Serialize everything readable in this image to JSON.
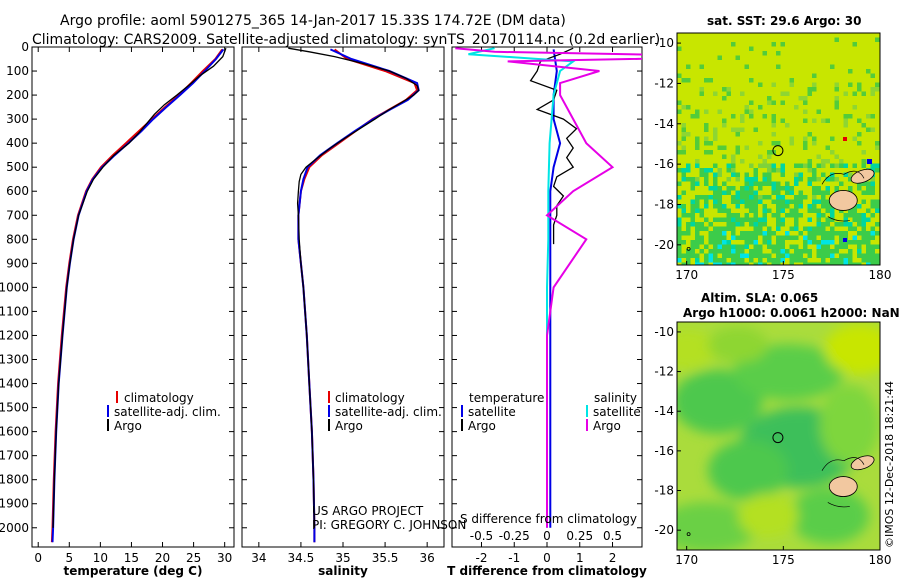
{
  "title_line1": "Argo profile: aoml 5901275_365 14-Jan-2017 15.33S 174.72E (DM data)",
  "title_line2": "Climatology: CARS2009. Satellite-adjusted climatology: synTS_20170114.nc (0.2d earlier)",
  "credit_line1": "US ARGO PROJECT",
  "credit_line2": "PI: GREGORY C. JOHNSON",
  "timestamp": "©IMOS 12-Dec-2018 18:21:44",
  "colors": {
    "climatology": "#e60000",
    "satellite": "#0000e6",
    "argo": "#000000",
    "sat_salinity": "#00e5e5",
    "argo_salinity": "#e600e6"
  },
  "chart_data": [
    {
      "type": "line",
      "id": "temperature",
      "xlabel": "temperature (deg C)",
      "ylabel": "",
      "xlim": [
        -1,
        31.5
      ],
      "ylim": [
        2080,
        0
      ],
      "xticks": [
        0,
        5,
        10,
        15,
        20,
        25,
        30
      ],
      "xtick_labels": [
        "0",
        "5",
        "10",
        "15",
        "20",
        "25",
        "30"
      ],
      "yticks": [
        0,
        100,
        200,
        300,
        400,
        500,
        600,
        700,
        800,
        900,
        1000,
        1100,
        1200,
        1300,
        1400,
        1500,
        1600,
        1700,
        1800,
        1900,
        2000
      ],
      "ytick_labels": [
        "0",
        "100",
        "200",
        "300",
        "400",
        "500",
        "600",
        "700",
        "800",
        "900",
        "1000",
        "1100",
        "1200",
        "1300",
        "1400",
        "1500",
        "1600",
        "1700",
        "1800",
        "1900",
        "2000"
      ],
      "legend": [
        "climatology",
        "satellite-adj. clim.",
        "Argo"
      ],
      "series": [
        {
          "name": "climatology",
          "color": "#e60000",
          "depth": [
            10,
            50,
            100,
            150,
            200,
            250,
            300,
            350,
            400,
            450,
            500,
            550,
            600,
            700,
            800,
            900,
            1000,
            1200,
            1400,
            1600,
            1800,
            2000,
            2060
          ],
          "values": [
            29.6,
            28.5,
            26.5,
            24.6,
            22.6,
            20.4,
            18.3,
            16.2,
            14.1,
            12.0,
            10.1,
            8.7,
            7.7,
            6.4,
            5.6,
            5.0,
            4.5,
            3.8,
            3.2,
            2.8,
            2.5,
            2.3,
            2.2
          ]
        },
        {
          "name": "satellite-adj. clim.",
          "color": "#0000e6",
          "depth": [
            10,
            50,
            100,
            150,
            200,
            250,
            300,
            350,
            400,
            450,
            500,
            550,
            600,
            700,
            800,
            900,
            1000,
            1200,
            1400,
            1600,
            1800,
            2000,
            2060
          ],
          "values": [
            29.8,
            28.6,
            26.8,
            24.9,
            22.8,
            20.6,
            18.5,
            16.6,
            14.5,
            12.3,
            10.3,
            8.8,
            7.8,
            6.5,
            5.7,
            5.1,
            4.6,
            3.9,
            3.3,
            2.9,
            2.6,
            2.4,
            2.3
          ]
        },
        {
          "name": "Argo",
          "color": "#000000",
          "depth": [
            5,
            40,
            80,
            120,
            160,
            200,
            240,
            280,
            320,
            360,
            400,
            450,
            500,
            550,
            600,
            700,
            800,
            900,
            1000,
            1200,
            1400,
            1600,
            1800,
            2000
          ],
          "values": [
            30.2,
            29.7,
            28.2,
            26.0,
            24.2,
            22.3,
            20.3,
            18.7,
            17.4,
            16.1,
            14.6,
            12.2,
            10.4,
            8.9,
            7.9,
            6.5,
            5.7,
            5.1,
            4.6,
            3.9,
            3.3,
            2.9,
            2.6,
            2.4
          ]
        }
      ]
    },
    {
      "type": "line",
      "id": "salinity",
      "xlabel": "salinity",
      "xlim": [
        33.8,
        36.2
      ],
      "ylim": [
        2080,
        0
      ],
      "xticks": [
        34,
        34.5,
        35,
        35.5,
        36
      ],
      "xtick_labels": [
        "34",
        "34.5",
        "35",
        "35.5",
        "36"
      ],
      "legend": [
        "climatology",
        "satellite-adj. clim.",
        "Argo"
      ],
      "series": [
        {
          "name": "climatology",
          "color": "#e60000",
          "depth": [
            10,
            50,
            100,
            150,
            180,
            220,
            260,
            300,
            350,
            400,
            450,
            500,
            550,
            600,
            700,
            800,
            900,
            1000,
            1200,
            1400,
            1600,
            1800,
            2000,
            2060
          ],
          "values": [
            34.9,
            35.05,
            35.5,
            35.85,
            35.88,
            35.75,
            35.55,
            35.35,
            35.15,
            34.95,
            34.75,
            34.6,
            34.54,
            34.5,
            34.47,
            34.47,
            34.5,
            34.53,
            34.57,
            34.6,
            34.63,
            34.65,
            34.66,
            34.66
          ]
        },
        {
          "name": "satellite-adj. clim.",
          "color": "#0000e6",
          "depth": [
            10,
            50,
            100,
            150,
            180,
            220,
            260,
            300,
            350,
            400,
            450,
            500,
            550,
            600,
            700,
            800,
            900,
            1000,
            1200,
            1400,
            1600,
            1800,
            2000,
            2060
          ],
          "values": [
            34.85,
            35.1,
            35.55,
            35.88,
            35.9,
            35.77,
            35.56,
            35.36,
            35.14,
            34.93,
            34.73,
            34.58,
            34.53,
            34.5,
            34.47,
            34.47,
            34.5,
            34.53,
            34.57,
            34.6,
            34.63,
            34.65,
            34.66,
            34.66
          ]
        },
        {
          "name": "Argo",
          "color": "#000000",
          "depth": [
            5,
            20,
            40,
            70,
            100,
            130,
            160,
            180,
            200,
            230,
            260,
            300,
            340,
            380,
            420,
            460,
            500,
            530,
            560,
            600,
            650,
            700,
            800,
            900,
            1000,
            1200,
            1400,
            1600,
            1800,
            2000
          ],
          "values": [
            34.35,
            34.6,
            34.9,
            35.25,
            35.55,
            35.75,
            35.88,
            35.9,
            35.84,
            35.7,
            35.55,
            35.38,
            35.2,
            35.02,
            34.85,
            34.7,
            34.56,
            34.5,
            34.48,
            34.47,
            34.46,
            34.47,
            34.48,
            34.5,
            34.53,
            34.57,
            34.6,
            34.63,
            34.65,
            34.66
          ]
        }
      ]
    },
    {
      "type": "line",
      "id": "difference",
      "xlabel": "T difference from climatology",
      "secondary_xlabel": "S difference from climatology",
      "xlim": [
        -2.9,
        2.9
      ],
      "ylim": [
        2080,
        0
      ],
      "xticks": [
        -2,
        -1,
        0,
        1,
        2
      ],
      "xtick_labels": [
        "-2",
        "-1",
        "0",
        "1",
        "2"
      ],
      "secondary_xticks": [
        -0.5,
        -0.25,
        0,
        0.25,
        0.5
      ],
      "secondary_xtick_labels": [
        "-0.5",
        "-0.25",
        "0",
        "0.25",
        "0.5"
      ],
      "legend_temperature_title": "temperature",
      "legend_salinity_title": "salinity",
      "legend": [
        "satellite",
        "Argo",
        "satellite",
        "Argo"
      ],
      "series": [
        {
          "name": "T satellite",
          "color": "#0000e6",
          "depth": [
            10,
            100,
            200,
            300,
            400,
            500,
            600,
            800,
            1000,
            1500,
            2000
          ],
          "values": [
            0.2,
            0.3,
            0.2,
            0.2,
            0.4,
            0.2,
            0.1,
            0.1,
            0.1,
            0.1,
            0.1
          ]
        },
        {
          "name": "T Argo",
          "color": "#000000",
          "depth": [
            5,
            30,
            60,
            100,
            140,
            180,
            220,
            260,
            300,
            340,
            380,
            420,
            460,
            500,
            540,
            580,
            620,
            660,
            700,
            740,
            780,
            820
          ],
          "values": [
            0.8,
            0.4,
            -0.2,
            -0.3,
            -0.5,
            0.3,
            0.2,
            -0.3,
            0.5,
            0.9,
            0.6,
            0.8,
            0.6,
            0.8,
            0.3,
            0.2,
            0.5,
            0.3,
            0.3,
            0.2,
            0.2,
            0.2
          ]
        },
        {
          "name": "S satellite",
          "color": "#00e5e5",
          "depth": [
            5,
            30,
            60,
            100,
            200,
            400,
            600,
            800,
            1000,
            1500,
            2000
          ],
          "values": [
            -0.4,
            -0.6,
            0.2,
            0.1,
            0.05,
            0.02,
            0.01,
            0.01,
            0.0,
            0.0,
            0.0
          ]
        },
        {
          "name": "S Argo",
          "color": "#e600e6",
          "depth": [
            5,
            20,
            40,
            60,
            100,
            150,
            200,
            300,
            400,
            500,
            600,
            700,
            800,
            1000,
            1200,
            1500,
            1800,
            2000
          ],
          "values": [
            -0.7,
            -0.4,
            1.6,
            -0.3,
            0.4,
            0.1,
            0.1,
            0.2,
            0.3,
            0.5,
            0.2,
            0.0,
            0.3,
            0.05,
            0.0,
            0.0,
            0.0,
            0.0
          ]
        }
      ]
    },
    {
      "type": "heatmap",
      "id": "sst_map",
      "title": "sat. SST: 29.6 Argo: 30",
      "xlim": [
        169.5,
        180
      ],
      "ylim": [
        -21,
        -9.5
      ],
      "xticks": [
        170,
        175,
        180
      ],
      "xtick_labels": [
        "170",
        "175",
        "180"
      ],
      "yticks": [
        -10,
        -12,
        -14,
        -16,
        -18,
        -20
      ],
      "ytick_labels": [
        "-10",
        "-12",
        "-14",
        "-16",
        "-18",
        "-20"
      ],
      "marker_position": [
        174.72,
        -15.33
      ]
    },
    {
      "type": "heatmap",
      "id": "sla_map",
      "title_line1": "Altim. SLA: 0.065",
      "title_line2": "Argo h1000: 0.0061 h2000: NaN",
      "xlim": [
        169.5,
        180
      ],
      "ylim": [
        -21,
        -9.5
      ],
      "xticks": [
        170,
        175,
        180
      ],
      "xtick_labels": [
        "170",
        "175",
        "180"
      ],
      "yticks": [
        -10,
        -12,
        -14,
        -16,
        -18,
        -20
      ],
      "ytick_labels": [
        "-10",
        "-12",
        "-14",
        "-16",
        "-18",
        "-20"
      ],
      "marker_position": [
        174.72,
        -15.33
      ]
    }
  ]
}
